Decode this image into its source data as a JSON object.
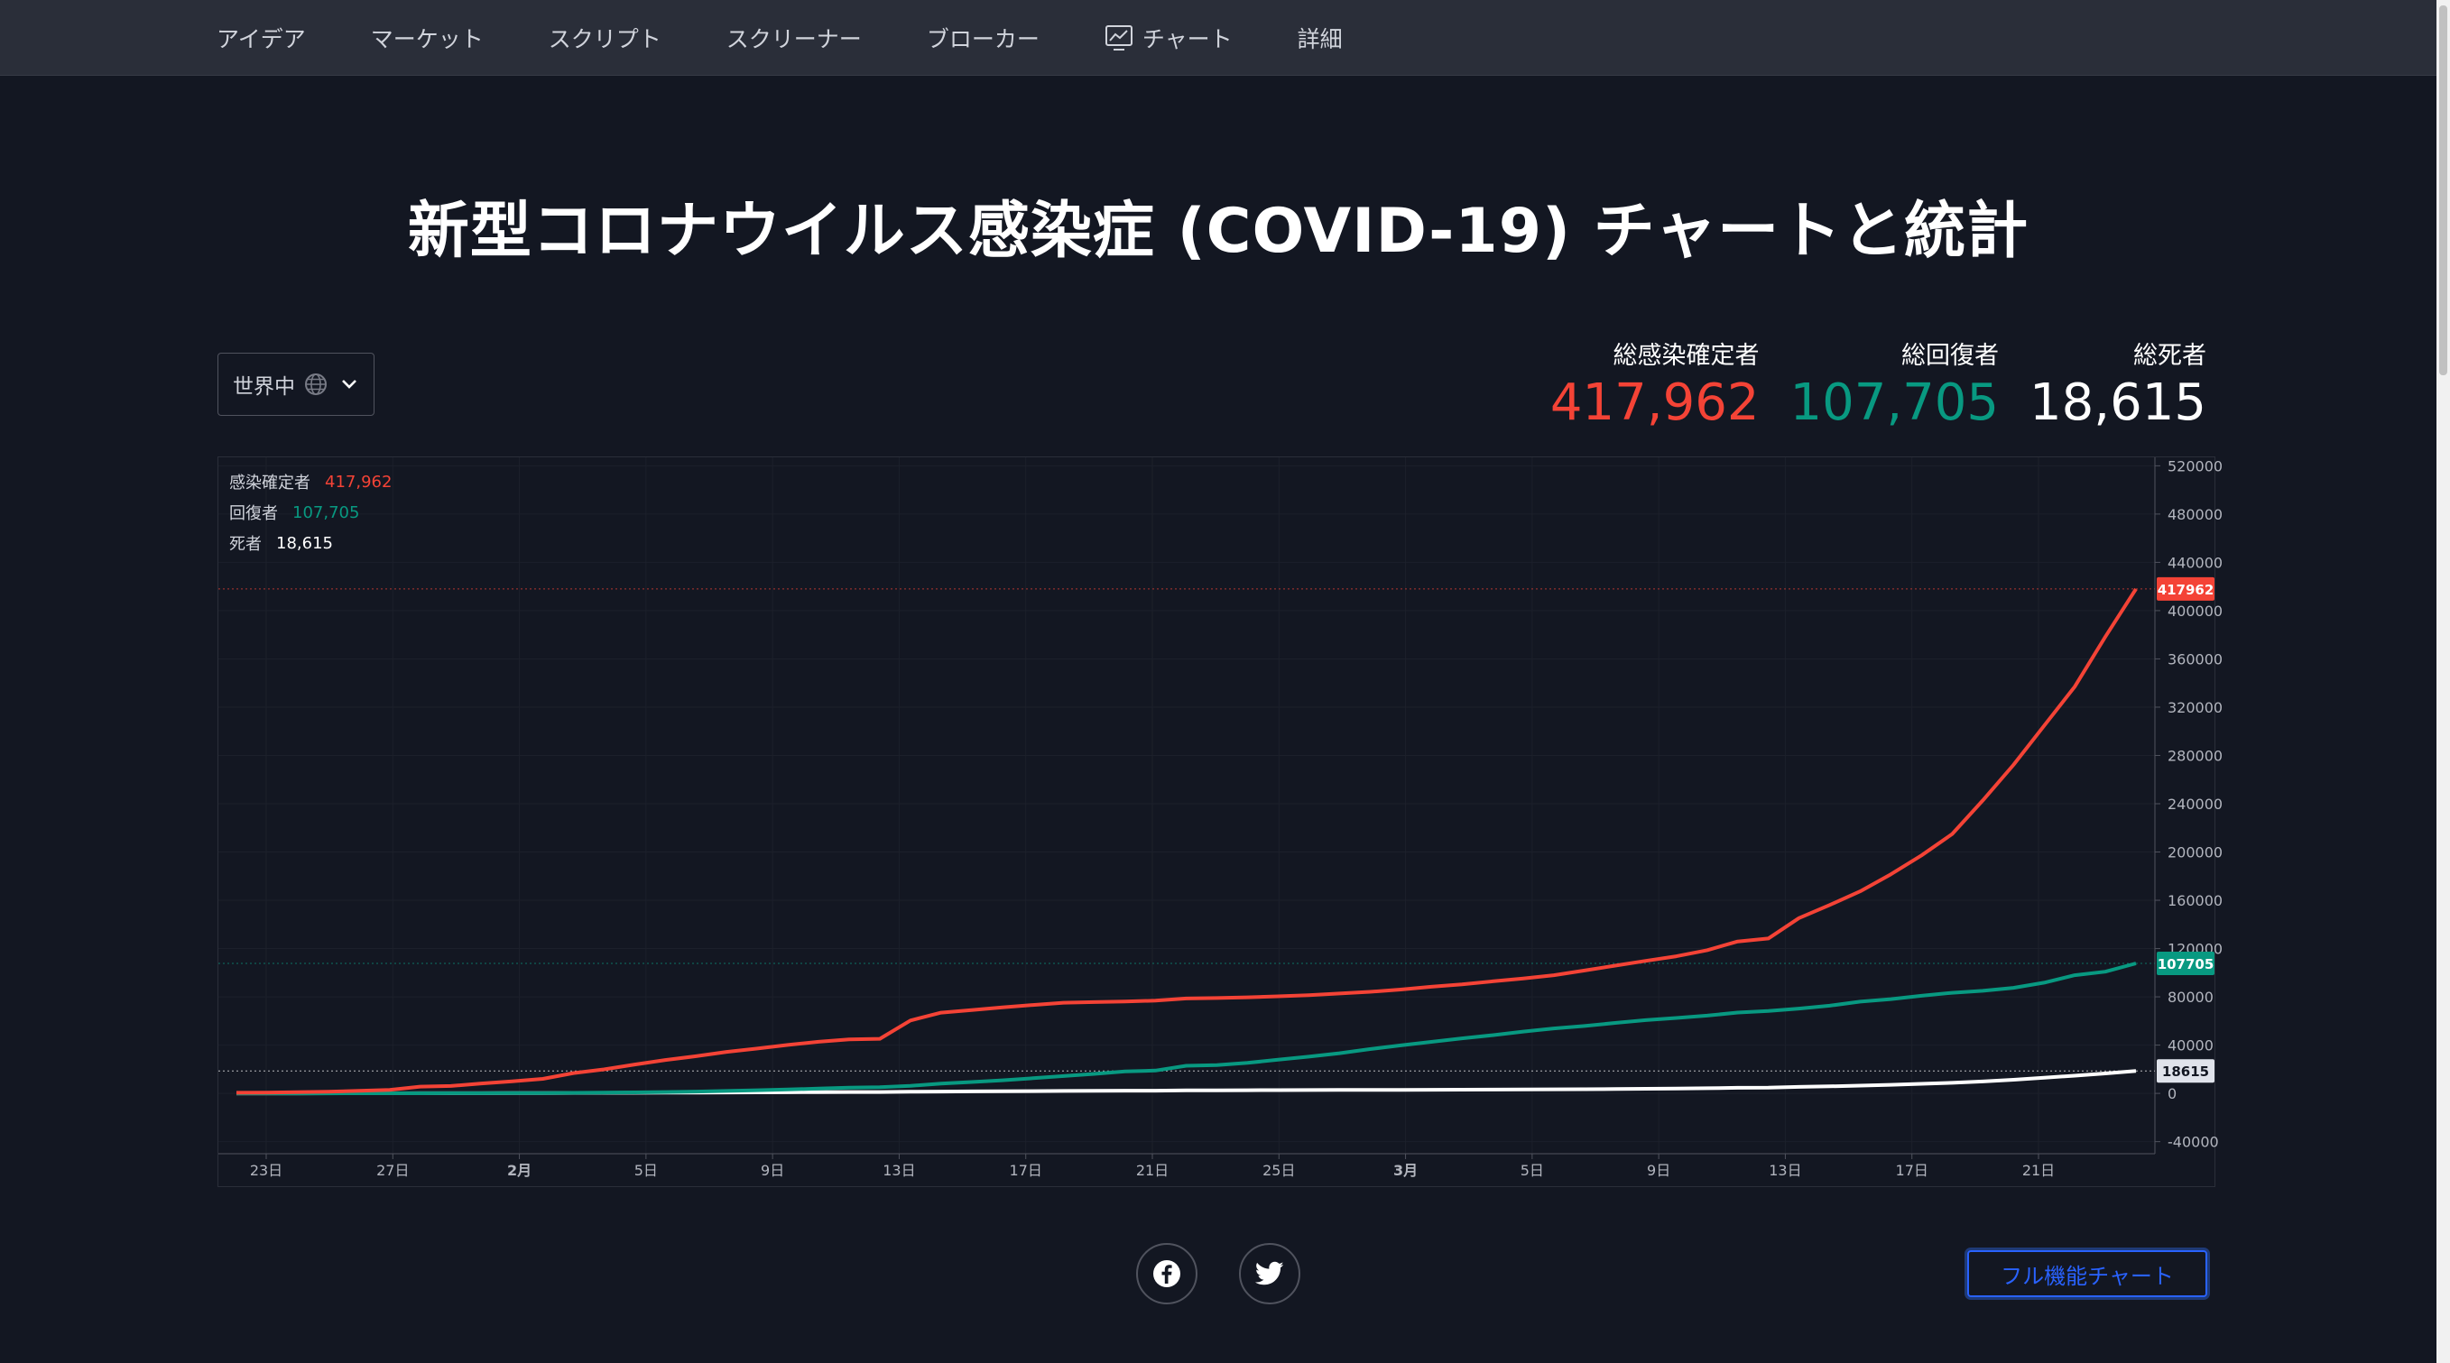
{
  "nav": {
    "items": [
      {
        "label": "アイデア",
        "icon": ""
      },
      {
        "label": "マーケット",
        "icon": ""
      },
      {
        "label": "スクリプト",
        "icon": ""
      },
      {
        "label": "スクリーナー",
        "icon": ""
      },
      {
        "label": "ブローカー",
        "icon": ""
      },
      {
        "label": "チャート",
        "icon": "chart-icon"
      },
      {
        "label": "詳細",
        "icon": ""
      }
    ]
  },
  "page": {
    "title": "新型コロナウイルス感染症 (COVID-19) チャートと統計"
  },
  "region": {
    "selected": "世界中"
  },
  "stats": {
    "confirmed_label": "総感染確定者",
    "confirmed_value": "417,962",
    "recovered_label": "総回復者",
    "recovered_value": "107,705",
    "deaths_label": "総死者",
    "deaths_value": "18,615"
  },
  "legend": {
    "confirmed_name": "感染確定者",
    "confirmed_value": "417,962",
    "recovered_name": "回復者",
    "recovered_value": "107,705",
    "deaths_name": "死者",
    "deaths_value": "18,615"
  },
  "actions": {
    "full_chart_label": "フル機能チャート"
  },
  "colors": {
    "confirmed": "#f44336",
    "recovered": "#089981",
    "deaths": "#ffffff",
    "accent": "#2962ff",
    "background": "#131722"
  },
  "chart_data": {
    "type": "line",
    "x_tick_labels": [
      "23日",
      "27日",
      "2月",
      "5日",
      "9日",
      "13日",
      "17日",
      "21日",
      "25日",
      "3月",
      "5日",
      "9日",
      "13日",
      "17日",
      "21日"
    ],
    "y_ticks": [
      -40000,
      0,
      40000,
      80000,
      120000,
      160000,
      200000,
      240000,
      280000,
      320000,
      360000,
      400000,
      440000,
      480000,
      520000
    ],
    "ylim": [
      -50000,
      527000
    ],
    "last_value_labels": [
      "417962",
      "107705",
      "18615"
    ],
    "series": [
      {
        "name": "感染確定者",
        "color": "#f44336",
        "values": [
          555,
          654,
          941,
          1434,
          2118,
          2927,
          5578,
          6166,
          8234,
          9927,
          12038,
          16787,
          19881,
          23892,
          27636,
          30818,
          34392,
          37121,
          40151,
          42763,
          44803,
          45222,
          60370,
          66887,
          69032,
          71226,
          73260,
          75138,
          75641,
          76199,
          76843,
          78599,
          78985,
          79570,
          80415,
          81397,
          82756,
          84124,
          86013,
          88371,
          90309,
          92844,
          95124,
          97886,
          101801,
          105847,
          109821,
          113590,
          118620,
          125875,
          128343,
          145193,
          156097,
          167449,
          181546,
          197168,
          214915,
          242713,
          272167,
          304528,
          336953,
          378235,
          417962
        ]
      },
      {
        "name": "回復者",
        "color": "#089981",
        "values": [
          28,
          30,
          36,
          39,
          52,
          61,
          107,
          126,
          143,
          222,
          284,
          472,
          623,
          852,
          1124,
          1487,
          2011,
          2616,
          3244,
          3946,
          4683,
          5150,
          6295,
          8058,
          9395,
          10865,
          12583,
          14352,
          16121,
          18177,
          18890,
          22886,
          23394,
          25227,
          27905,
          30384,
          33277,
          36711,
          39782,
          42716,
          45602,
          48228,
          51170,
          53796,
          55865,
          58358,
          60694,
          62494,
          64404,
          67003,
          68324,
          70251,
          72624,
          76034,
          78088,
          80840,
          83312,
          84975,
          87420,
          91692,
          97899,
          100830,
          107705
        ]
      },
      {
        "name": "死者",
        "color": "#ffffff",
        "values": [
          17,
          18,
          26,
          42,
          56,
          82,
          131,
          133,
          171,
          213,
          259,
          362,
          426,
          492,
          564,
          634,
          719,
          806,
          906,
          1013,
          1113,
          1118,
          1371,
          1523,
          1666,
          1770,
          1868,
          2007,
          2122,
          2247,
          2251,
          2458,
          2469,
          2629,
          2708,
          2770,
          2814,
          2872,
          2941,
          2996,
          3085,
          3160,
          3254,
          3348,
          3460,
          3558,
          3802,
          3988,
          4262,
          4615,
          4720,
          5404,
          5819,
          6440,
          7126,
          7905,
          8733,
          9867,
          11299,
          12973,
          14651,
          16505,
          18615
        ]
      }
    ]
  }
}
